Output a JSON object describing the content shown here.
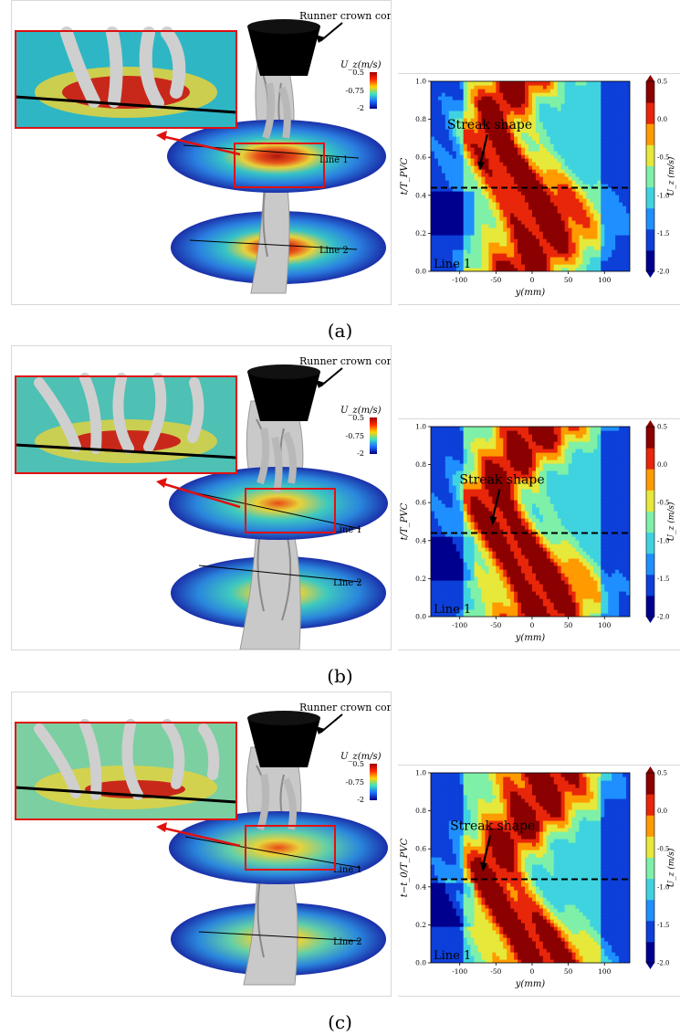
{
  "figure": {
    "panels": [
      {
        "id": "a",
        "caption": "(a)",
        "annotations": {
          "cone_label": "Runner crown cone",
          "line1_label": "Line 1",
          "line2_label": "Line 2",
          "colorbar_title": "U_z(m/s)",
          "colorbar_ticks": [
            "0.5",
            "-0.75",
            "-2"
          ]
        },
        "chart_data": {
          "type": "heatmap",
          "title": "",
          "xlabel": "y(mm)",
          "ylabel": "t/T_PVC",
          "xlim": [
            -140,
            135
          ],
          "ylim": [
            0,
            1
          ],
          "x_ticks": [
            "-100",
            "-50",
            "0",
            "50",
            "100"
          ],
          "y_ticks": [
            "0.0",
            "0.2",
            "0.4",
            "0.6",
            "0.8",
            "1.0"
          ],
          "colorbar_label": "U_z (m/s)",
          "colorbar_ticks": [
            "0.5",
            "0.0",
            "-0.5",
            "-1.0",
            "-1.5",
            "-2.0"
          ],
          "colorbar_range": [
            -2.0,
            0.5
          ],
          "annotation": "Streak shape",
          "annotation_point": [
            -72,
            0.53
          ],
          "line_label": "Line 1",
          "dashed_line_t": 0.44
        }
      },
      {
        "id": "b",
        "caption": "(b)",
        "annotations": {
          "cone_label": "Runner crown cone",
          "line1_label": "Line 1",
          "line2_label": "Line 2",
          "colorbar_title": "U_z(m/s)",
          "colorbar_ticks": [
            "0.5",
            "-0.75",
            "-2"
          ]
        },
        "chart_data": {
          "type": "heatmap",
          "title": "",
          "xlabel": "y(mm)",
          "ylabel": "t/T_PVC",
          "xlim": [
            -140,
            135
          ],
          "ylim": [
            0,
            1
          ],
          "x_ticks": [
            "-100",
            "-50",
            "0",
            "50",
            "100"
          ],
          "y_ticks": [
            "0.0",
            "0.2",
            "0.4",
            "0.6",
            "0.8",
            "1.0"
          ],
          "colorbar_label": "U_z (m/s)",
          "colorbar_ticks": [
            "0.5",
            "0.0",
            "-0.5",
            "-1.0",
            "-1.5",
            "-2.0"
          ],
          "colorbar_range": [
            -2.0,
            0.5
          ],
          "annotation": "Streak shape",
          "annotation_point": [
            -55,
            0.48
          ],
          "line_label": "Line 1",
          "dashed_line_t": 0.44
        }
      },
      {
        "id": "c",
        "caption": "(c)",
        "annotations": {
          "cone_label": "Runner crown cone",
          "line1_label": "Line 1",
          "line2_label": "Line 2",
          "colorbar_title": "U_z(m/s)",
          "colorbar_ticks": [
            "0.5",
            "-0.75",
            "-2"
          ]
        },
        "chart_data": {
          "type": "heatmap",
          "title": "",
          "xlabel": "y(mm)",
          "ylabel": "t−t_0/T_PVC",
          "xlim": [
            -140,
            135
          ],
          "ylim": [
            0,
            1
          ],
          "x_ticks": [
            "-100",
            "-50",
            "0",
            "50",
            "100"
          ],
          "y_ticks": [
            "0.0",
            "0.2",
            "0.4",
            "0.6",
            "0.8",
            "1.0"
          ],
          "colorbar_label": "U_z (m/s)",
          "colorbar_ticks": [
            "0.5",
            "0.0",
            "-0.5",
            "-1.0",
            "-1.5",
            "-2.0"
          ],
          "colorbar_range": [
            -2.0,
            0.5
          ],
          "annotation": "Streak shape",
          "annotation_point": [
            -68,
            0.48
          ],
          "line_label": "Line 1",
          "dashed_line_t": 0.44
        }
      }
    ]
  }
}
